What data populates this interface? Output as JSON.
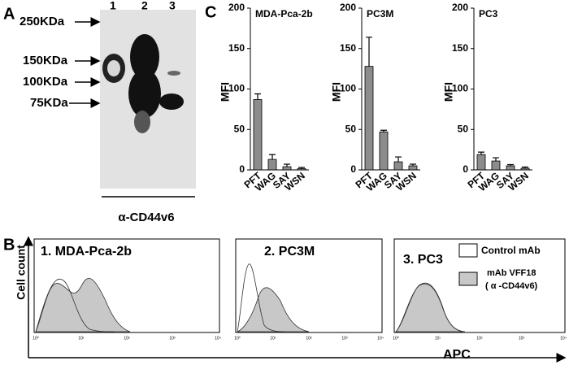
{
  "panels": {
    "a": "A",
    "b": "B",
    "c": "C"
  },
  "blot": {
    "markers": [
      "250KDa",
      "150KDa",
      "100KDa",
      "75KDa"
    ],
    "lanes": [
      "1",
      "2",
      "3"
    ],
    "antibody": "α-CD44v6"
  },
  "flow": {
    "titles": [
      "1. MDA-Pca-2b",
      "2. PC3M",
      "3. PC3"
    ],
    "y_label": "Cell count",
    "x_label": "APC",
    "ticks": [
      "10⁰",
      "10¹",
      "10²",
      "10³",
      "10⁴"
    ],
    "legend": [
      "Control mAb",
      "mAb VFF18",
      "( α -CD44v6)"
    ]
  },
  "chart_data": [
    {
      "type": "bar",
      "title": "MDA-Pca-2b",
      "y_label": "MFI",
      "categories": [
        "PFT",
        "WAG",
        "SAY",
        "WSN"
      ],
      "values": [
        87,
        13,
        4,
        1.5
      ],
      "errors": [
        7,
        6,
        3,
        1.5
      ],
      "color": "#8c8c8c",
      "ylim": [
        0,
        200
      ],
      "yticks": [
        0,
        50,
        100,
        150,
        200
      ]
    },
    {
      "type": "bar",
      "title": "PC3M",
      "y_label": "MFI",
      "categories": [
        "PFT",
        "WAG",
        "SAY",
        "WSN"
      ],
      "values": [
        128,
        47,
        10,
        5
      ],
      "errors": [
        36,
        2,
        6,
        2
      ],
      "color": "#8c8c8c",
      "ylim": [
        0,
        200
      ],
      "yticks": [
        0,
        50,
        100,
        150,
        200
      ]
    },
    {
      "type": "bar",
      "title": "PC3",
      "y_label": "MFI",
      "categories": [
        "PFT",
        "WAG",
        "SAY",
        "WSN"
      ],
      "values": [
        19,
        11,
        5,
        2
      ],
      "errors": [
        3,
        4,
        1.5,
        1.5
      ],
      "color": "#8c8c8c",
      "ylim": [
        0,
        200
      ],
      "yticks": [
        0,
        50,
        100,
        150,
        200
      ]
    }
  ]
}
